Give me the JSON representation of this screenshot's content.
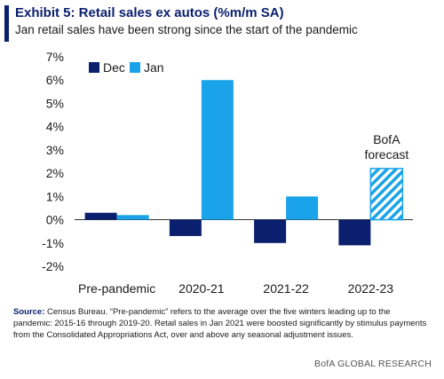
{
  "title": "Exhibit 5: Retail sales ex autos (%m/m SA)",
  "subtitle": "Jan retail sales have been strong since the start of the pandemic",
  "source_label": "Source:",
  "source_text": "Census Bureau. “Pre-pandemic” refers to the average over the five winters leading up to the pandemic: 2015-16 through 2019-20. Retail sales in Jan 2021 were boosted significantly by stimulus payments from the Consolidated Appropriations Act, over and above any seasonal adjustment issues.",
  "brand": "BofA GLOBAL RESEARCH",
  "colors": {
    "dec": "#0a1f6e",
    "jan": "#1aa3e8",
    "title": "#0a1f6e"
  },
  "chart_data": {
    "type": "bar",
    "categories": [
      "Pre-pandemic",
      "2020-21",
      "2021-22",
      "2022-23"
    ],
    "series": [
      {
        "name": "Dec",
        "values": [
          0.3,
          -0.7,
          -1.0,
          -1.1
        ]
      },
      {
        "name": "Jan",
        "values": [
          0.2,
          6.0,
          1.0,
          2.2
        ]
      }
    ],
    "forecast": {
      "series": "Jan",
      "category": "2022-23",
      "label_lines": [
        "BofA",
        "forecast"
      ],
      "pattern": "hatched"
    },
    "ylim": [
      -2,
      7
    ],
    "yticks": [
      -2,
      -1,
      0,
      1,
      2,
      3,
      4,
      5,
      6,
      7
    ],
    "ytick_labels": [
      "-2%",
      "-1%",
      "0%",
      "1%",
      "2%",
      "3%",
      "4%",
      "5%",
      "6%",
      "7%"
    ],
    "legend": "top-left",
    "grid": false
  }
}
